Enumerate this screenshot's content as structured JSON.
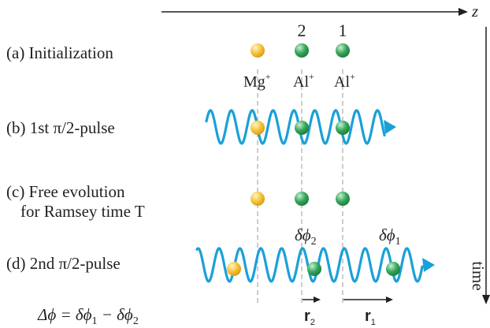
{
  "axes": {
    "z_label": "z",
    "time_label": "time"
  },
  "ions": {
    "index_2": "2",
    "index_1": "1",
    "mg_label": "Mg",
    "mg_sup": "+",
    "al2_label": "Al",
    "al2_sup": "+",
    "al1_label": "Al",
    "al1_sup": "+"
  },
  "steps": {
    "a": "(a) Initialization",
    "b": "(b) 1st π/2-pulse",
    "c_line1": "(c) Free evolution",
    "c_line2": "for Ramsey time T",
    "d": "(d) 2nd π/2-pulse"
  },
  "phases": {
    "dphi2_base": "δϕ",
    "dphi2_sub": "2",
    "dphi1_base": "δϕ",
    "dphi1_sub": "1",
    "delta_phi": "Δϕ = δϕ",
    "delta_phi_sub1": "1",
    "delta_phi_minus": " − δϕ",
    "delta_phi_sub2": "2"
  },
  "positions": {
    "r2_base": "r",
    "r2_sub": "2",
    "r1_base": "r",
    "r1_sub": "1"
  },
  "colors": {
    "wave": "#1aa0d8",
    "mg_ion": "#f5c23a",
    "al_ion": "#35a65a",
    "text": "#231f20"
  }
}
